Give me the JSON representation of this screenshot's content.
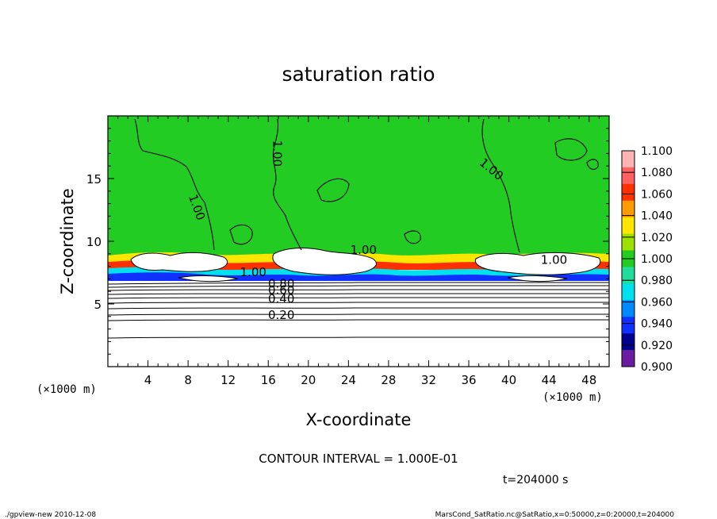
{
  "chart_data": {
    "type": "contour",
    "title": "saturation ratio",
    "xlabel": "X-coordinate",
    "ylabel": "Z-coordinate",
    "x_unit_left": "(×1000 m)",
    "x_unit_right": "(×1000 m)",
    "xlim": [
      0,
      50
    ],
    "ylim": [
      0,
      20
    ],
    "x_ticks": [
      4,
      8,
      12,
      16,
      20,
      24,
      28,
      32,
      36,
      40,
      44,
      48
    ],
    "y_ticks": [
      5,
      10,
      15
    ],
    "colorbar": {
      "levels": [
        "1.100",
        "1.080",
        "1.060",
        "1.040",
        "1.020",
        "1.000",
        "0.980",
        "0.960",
        "0.940",
        "0.920",
        "0.900"
      ],
      "colors": [
        "#ffb3b3",
        "#ff6060",
        "#ff3000",
        "#ff9a00",
        "#ffe600",
        "#9ee000",
        "#22cc22",
        "#22dd99",
        "#00e0ee",
        "#0088ff",
        "#1030ff",
        "#000090",
        "#6a1ba0"
      ]
    },
    "fill_color": "#22cc22",
    "contour_labels": [
      {
        "text": "1.00",
        "x": 16.5,
        "z": 17.0
      },
      {
        "text": "1.00",
        "x": 8.5,
        "z": 12.6
      },
      {
        "text": "1.00",
        "x": 38.0,
        "z": 15.5
      },
      {
        "text": "1.00",
        "x": 25.5,
        "z": 9.0
      },
      {
        "text": "1.00",
        "x": 44.5,
        "z": 8.2
      },
      {
        "text": "1.00",
        "x": 14.5,
        "z": 7.2
      },
      {
        "text": "0.80",
        "x": 17.3,
        "z": 6.3
      },
      {
        "text": "0.60",
        "x": 17.3,
        "z": 5.8
      },
      {
        "text": "0.40",
        "x": 17.3,
        "z": 5.1
      },
      {
        "text": "0.20",
        "x": 17.3,
        "z": 3.8
      }
    ],
    "contour_interval": "CONTOUR INTERVAL = 1.000E-01",
    "time": "t=204000 s"
  },
  "footer": {
    "left": "./gpview-new   2010-12-08",
    "right": "MarsCond_SatRatio.nc@SatRatio,x=0:50000,z=0:20000,t=204000"
  }
}
